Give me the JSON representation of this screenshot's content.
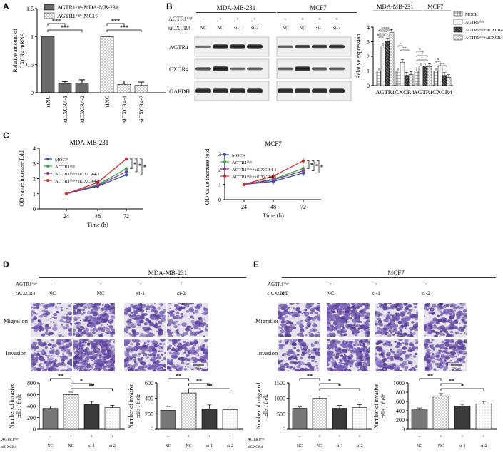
{
  "panel_labels": {
    "A": "A",
    "B": "B",
    "C": "C",
    "D": "D",
    "E": "E"
  },
  "chart_data": [
    {
      "id": "A",
      "type": "bar",
      "ylabel": "Relative amount of CXCR4 mRNA",
      "ylim": [
        0,
        1.5
      ],
      "yticks": [
        "0",
        "0.5",
        "1",
        "1.5"
      ],
      "legend": [
        {
          "name": "AGTR1high-MDA-MB-231",
          "text": "AGTR1ʰⁱᵍʰ-MDA-MB-231"
        },
        {
          "name": "AGTR1high-MCF7",
          "text": "AGTR1ʰⁱᵍʰ-MCF7"
        }
      ],
      "categories": [
        "siNC",
        "siCXCR4-1",
        "siCXCR4-2",
        "siNC",
        "siCXCR4-1",
        "siCXCR4-2"
      ],
      "values": [
        1.0,
        0.16,
        0.17,
        1.0,
        0.15,
        0.13
      ],
      "errors": [
        0.0,
        0.04,
        0.06,
        0.0,
        0.06,
        0.06
      ],
      "series_index": [
        0,
        0,
        0,
        1,
        1,
        1
      ],
      "sig": [
        "***",
        "***",
        "***",
        "***"
      ]
    },
    {
      "id": "B",
      "type": "bar",
      "ylabel": "Relative expression",
      "ylim": [
        0,
        4
      ],
      "yticks": [
        "0",
        "1",
        "2",
        "3",
        "4"
      ],
      "group_headers": [
        "MDA-MB-231",
        "MCF7"
      ],
      "categories": [
        "AGTR1",
        "CXCR4",
        "AGTR1",
        "CXCR4"
      ],
      "series": [
        {
          "name": "MOCK",
          "values": [
            1.0,
            1.0,
            1.0,
            1.0
          ]
        },
        {
          "name": "AGTR1high",
          "text": "AGTR1ʰⁱᵍʰ",
          "values": [
            2.7,
            1.6,
            1.35,
            1.35
          ]
        },
        {
          "name": "AGTR1high+siCXCR4-1",
          "text": "AGTR1ʰⁱᵍʰ+siCXCR4-1",
          "values": [
            3.0,
            0.7,
            1.35,
            0.7
          ]
        },
        {
          "name": "AGTR1high+siCXCR4-2",
          "text": "AGTR1ʰⁱᵍʰ+siCXCR4-2",
          "values": [
            3.65,
            0.75,
            1.3,
            0.55
          ]
        }
      ],
      "sig": [
        "****",
        "****",
        "****",
        "*",
        "**",
        "*",
        "*",
        "*",
        "*",
        "**"
      ]
    },
    {
      "id": "C1",
      "type": "line",
      "title": "MDA-MB-231",
      "xlabel": "Time (h)",
      "ylabel": "OD value increase fold",
      "x": [
        24,
        48,
        72
      ],
      "ylim": [
        0,
        4
      ],
      "yticks": [
        "0",
        "1",
        "2",
        "3",
        "4"
      ],
      "series": [
        {
          "name": "MOCK",
          "color": "#2a4fa0",
          "values": [
            1.0,
            1.5,
            2.25
          ]
        },
        {
          "name": "AGTR1high",
          "text": "AGTR1ʰⁱᵍʰ",
          "color": "#39a845",
          "values": [
            1.0,
            1.6,
            2.65
          ]
        },
        {
          "name": "AGTR1high+siCXCR4-1",
          "text": "AGTR1ʰⁱᵍʰ+siCXCR4-1",
          "color": "#8a3aa8",
          "values": [
            1.0,
            1.55,
            2.45
          ]
        },
        {
          "name": "AGTR1high+siCXCR4-1",
          "text": "AGTR1ʰⁱᵍʰ+siCXCR4-1",
          "color": "#d62a2a",
          "values": [
            1.0,
            1.75,
            3.3
          ]
        }
      ],
      "errors": [
        0.12,
        0.15,
        0.12
      ],
      "sig": [
        "*",
        "*",
        "*"
      ]
    },
    {
      "id": "C2",
      "type": "line",
      "title": "MCF7",
      "xlabel": "Time (h)",
      "ylabel": "OD value increase fold",
      "x": [
        24,
        48,
        72
      ],
      "ylim": [
        0,
        3
      ],
      "yticks": [
        "0",
        "1",
        "2",
        "3"
      ],
      "series": [
        {
          "name": "MOCK",
          "color": "#2a4fa0",
          "values": [
            1.0,
            1.2,
            1.75
          ]
        },
        {
          "name": "AGTR1high",
          "text": "AGTR1ʰⁱᵍʰ",
          "color": "#39a845",
          "values": [
            1.0,
            1.35,
            2.05
          ]
        },
        {
          "name": "AGTR1high+siCXCR4-1",
          "text": "AGTR1ʰⁱᵍʰ+siCXCR4-1",
          "color": "#8a3aa8",
          "values": [
            1.0,
            1.3,
            1.9
          ]
        },
        {
          "name": "AGTR1high+siCXCR4-1",
          "text": "AGTR1ʰⁱᵍʰ+siCXCR4-1",
          "color": "#d62a2a",
          "values": [
            1.0,
            1.55,
            2.55
          ]
        }
      ],
      "errors": [
        0.12,
        0.22,
        0.2
      ],
      "sig": [
        "*",
        "*",
        "*"
      ]
    },
    {
      "id": "D1",
      "type": "bar",
      "ylabel": "Number of invasive cells / field",
      "ylim": [
        0,
        800
      ],
      "yticks": [
        "0",
        "200",
        "400",
        "600",
        "800"
      ],
      "values": [
        360,
        600,
        430,
        375
      ],
      "errors": [
        40,
        40,
        50,
        40
      ],
      "sig": [
        "**",
        "*",
        "**"
      ]
    },
    {
      "id": "D2",
      "type": "bar",
      "ylabel": "Number of invasive cells / field",
      "ylim": [
        0,
        600
      ],
      "yticks": [
        "0",
        "200",
        "400",
        "600"
      ],
      "values": [
        245,
        470,
        265,
        255
      ],
      "errors": [
        50,
        25,
        50,
        45
      ],
      "sig": [
        "**",
        "**",
        "**"
      ]
    },
    {
      "id": "E1",
      "type": "bar",
      "ylabel": "Number of migrated cells / field",
      "ylim": [
        0,
        1500
      ],
      "yticks": [
        "0",
        "500",
        "1000",
        "1500"
      ],
      "values": [
        680,
        1000,
        680,
        700
      ],
      "errors": [
        40,
        70,
        90,
        100
      ],
      "sig": [
        "**",
        "*",
        "*"
      ]
    },
    {
      "id": "E2",
      "type": "bar",
      "ylabel": "Number of invasive cells / field",
      "ylim": [
        0,
        1000
      ],
      "yticks": [
        "0",
        "200",
        "400",
        "600",
        "800",
        "1000"
      ],
      "values": [
        420,
        720,
        500,
        550
      ],
      "errors": [
        40,
        50,
        40,
        50
      ],
      "sig": [
        "**",
        "**",
        "*"
      ]
    }
  ],
  "group_rows": {
    "agtr1_label": "AGTR1ʰⁱᵍʰ",
    "agtr1_signs": [
      "-",
      "+",
      "+",
      "+"
    ],
    "sicxcr4_label": "siCXCR4",
    "sicxcr4_vals": [
      "NC",
      "NC",
      "si-1",
      "si-2"
    ]
  },
  "western": {
    "cell_lines": [
      "MDA-MB-231",
      "MCF7"
    ],
    "agtr1_label": "AGTR1ʰⁱᵍʰ",
    "sicxcr4_label": "siCXCR4",
    "signs": [
      "-",
      "+",
      "+",
      "+"
    ],
    "lanes": [
      "NC",
      "NC",
      "si-1",
      "si-2"
    ],
    "rows": [
      "AGTR1",
      "CXCR4",
      "GAPDH"
    ]
  },
  "microscopy": {
    "D_title": "MDA-MB-231",
    "E_title": "MCF7",
    "row_labels": [
      "Migration",
      "Invasion"
    ],
    "scale_bar": "200um"
  }
}
